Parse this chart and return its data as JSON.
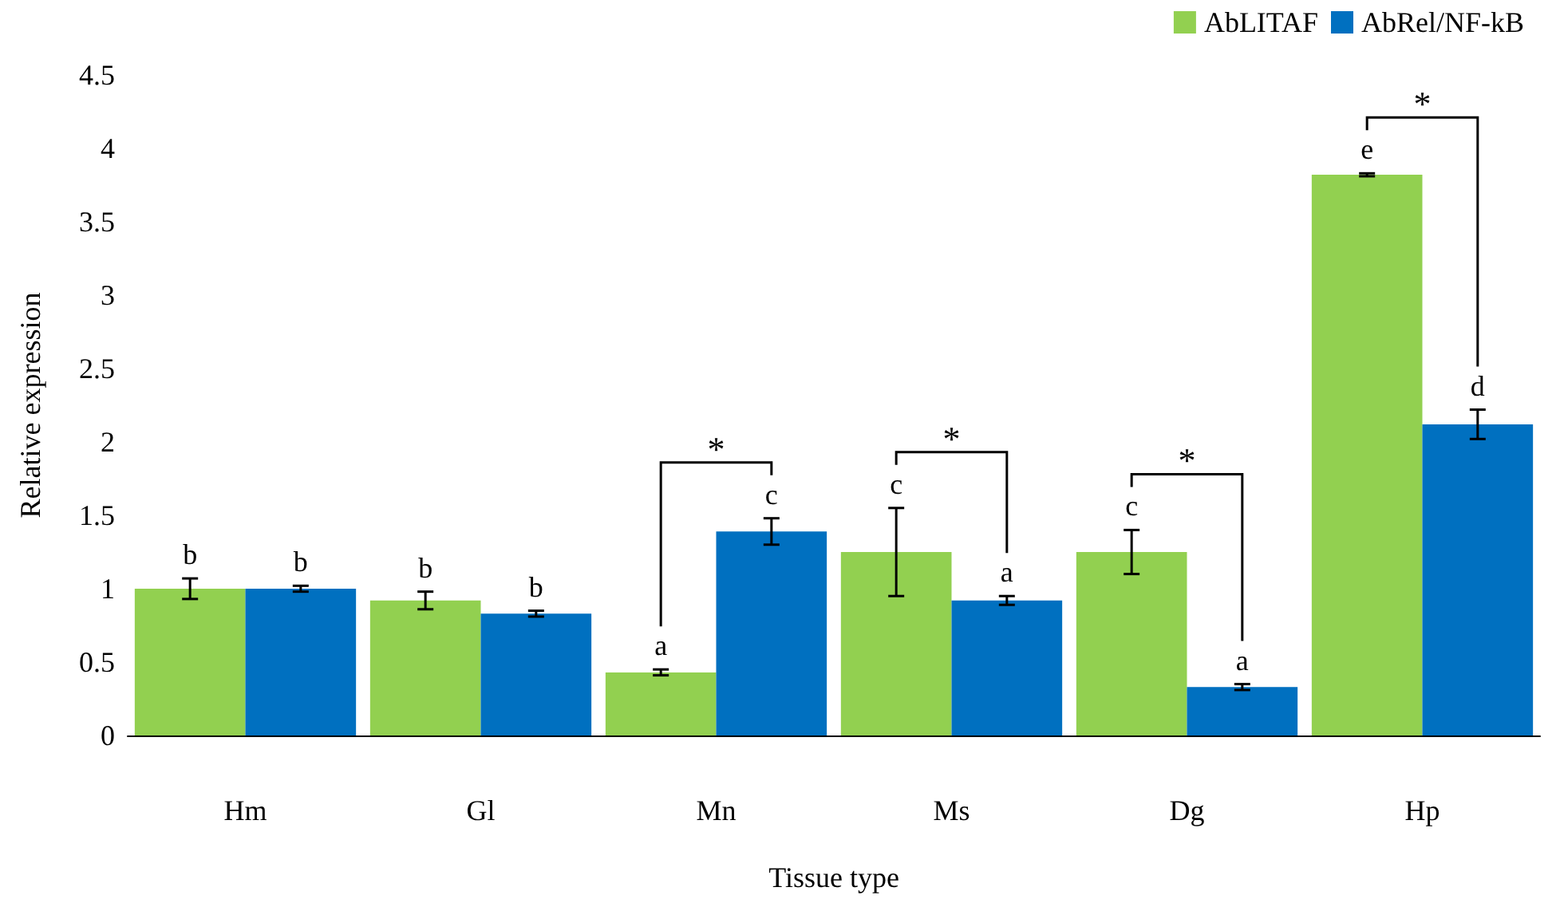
{
  "chart_data": {
    "type": "bar",
    "xlabel": "Tissue type",
    "ylabel": "Relative expression",
    "categories": [
      "Hm",
      "Gl",
      "Mn",
      "Ms",
      "Dg",
      "Hp"
    ],
    "series": [
      {
        "name": "AbLITAF",
        "color": "#92d050",
        "values": [
          1.0,
          0.92,
          0.43,
          1.25,
          1.25,
          3.82
        ],
        "errors": [
          0.07,
          0.06,
          0.02,
          0.3,
          0.15,
          0.01
        ],
        "value_labels": [
          "b",
          "b",
          "a",
          "c",
          "c",
          "e"
        ]
      },
      {
        "name": "AbRel/NF-kB",
        "color": "#0070c0",
        "values": [
          1.0,
          0.83,
          1.39,
          0.92,
          0.33,
          2.12
        ],
        "errors": [
          0.02,
          0.02,
          0.09,
          0.03,
          0.02,
          0.1
        ],
        "value_labels": [
          "b",
          "b",
          "c",
          "a",
          "a",
          "d"
        ]
      }
    ],
    "ylim": [
      0,
      4.5
    ],
    "yticks": [
      0,
      0.5,
      1,
      1.5,
      2,
      2.5,
      3,
      3.5,
      4,
      4.5
    ],
    "grid": false,
    "legend": "top right",
    "annotations": [
      {
        "text": "*",
        "x": "Mn",
        "y": 1.39
      },
      {
        "text": "*",
        "x": "Ms",
        "y": 1.25
      },
      {
        "text": "*",
        "x": "Dg",
        "y": 1.25
      },
      {
        "text": "*",
        "x": "Hp",
        "y": 3.82
      }
    ]
  }
}
